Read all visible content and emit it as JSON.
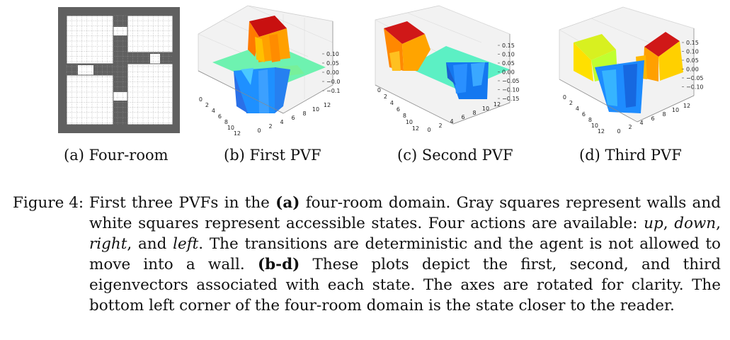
{
  "panels": [
    {
      "caption": "(a) Four-room"
    },
    {
      "caption": "(b) First PVF",
      "zticks": [
        "0.10",
        "0.05",
        "0.00",
        "−0.05",
        "−0.10"
      ]
    },
    {
      "caption": "(c) Second PVF",
      "zticks": [
        "0.15",
        "0.10",
        "0.05",
        "0.00",
        "−0.05",
        "−0.10",
        "−0.15"
      ]
    },
    {
      "caption": "(d) Third PVF",
      "zticks": [
        "0.15",
        "0.10",
        "0.05",
        "0.00",
        "−0.05",
        "−0.10"
      ]
    }
  ],
  "axis_ticks": {
    "x": [
      "0",
      "2",
      "4",
      "6",
      "8",
      "10",
      "12"
    ],
    "y": [
      "0",
      "2",
      "4",
      "6",
      "8",
      "10",
      "12"
    ]
  },
  "colors": {
    "wall": "#606060",
    "open": "#ffffff",
    "grid": "#999999"
  },
  "caption": {
    "label": "Figure 4:",
    "p1": "First three PVFs in the ",
    "p2": "(a)",
    "p3": " four-room domain. Gray squares represent walls and white squares represent accessible states. Four actions are available: ",
    "up": "up",
    "p4": ", ",
    "down": "down",
    "p5": ", ",
    "right": "right",
    "p6": ", and ",
    "left": "left",
    "p7": ". The transitions are deterministic and the agent is not allowed to move into a wall. ",
    "p8": "(b-d)",
    "p9": " These plots depict the first, second, and third eigenvectors associated with each state. The axes are rotated for clarity. The bottom left corner of the four-room domain is the state closer to the reader."
  }
}
